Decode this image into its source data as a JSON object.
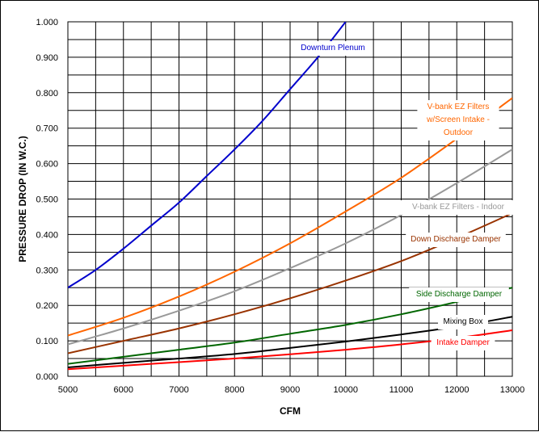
{
  "chart_data": {
    "type": "line",
    "title": "",
    "xlabel": "CFM",
    "ylabel": "PRESSURE DROP (IN W.C.)",
    "xlim": [
      5000,
      13000
    ],
    "ylim": [
      0,
      1.0
    ],
    "grid": true,
    "legend": "inline labels next to each curve",
    "x_ticks": [
      "5000",
      "6000",
      "7000",
      "8000",
      "9000",
      "10000",
      "11000",
      "12000",
      "13000"
    ],
    "y_ticks": [
      "0.000",
      "0.100",
      "0.200",
      "0.300",
      "0.400",
      "0.500",
      "0.600",
      "0.700",
      "0.800",
      "0.900",
      "1.000"
    ],
    "series": [
      {
        "name": "Downturn Plenum",
        "label_lines": [
          "Downturn Plenum"
        ],
        "color": "#0000cc",
        "x": [
          5000,
          5500,
          6000,
          6500,
          7000,
          7500,
          8000,
          8500,
          9000,
          9500,
          10000
        ],
        "values": [
          0.25,
          0.3,
          0.36,
          0.425,
          0.49,
          0.565,
          0.64,
          0.72,
          0.81,
          0.9,
          1.0
        ]
      },
      {
        "name": "V-bank EZ Filters w/Screen Intake - Outdoor",
        "label_lines": [
          "V-bank EZ Filters",
          "w/Screen Intake -",
          "Outdoor"
        ],
        "color": "#ff6600",
        "x": [
          5000,
          6000,
          7000,
          8000,
          9000,
          10000,
          11000,
          12000,
          13000
        ],
        "values": [
          0.115,
          0.165,
          0.225,
          0.295,
          0.375,
          0.465,
          0.56,
          0.67,
          0.785
        ]
      },
      {
        "name": "V-bank EZ Filters - Indoor",
        "label_lines": [
          "V-bank EZ Filters - Indoor"
        ],
        "color": "#999999",
        "x": [
          5000,
          6000,
          7000,
          8000,
          9000,
          10000,
          11000,
          12000,
          13000
        ],
        "values": [
          0.09,
          0.135,
          0.185,
          0.24,
          0.305,
          0.375,
          0.455,
          0.545,
          0.64
        ]
      },
      {
        "name": "Down Discharge Damper",
        "label_lines": [
          "Down Discharge Damper"
        ],
        "color": "#993300",
        "x": [
          5000,
          6000,
          7000,
          8000,
          9000,
          10000,
          11000,
          12000,
          13000
        ],
        "values": [
          0.065,
          0.1,
          0.135,
          0.175,
          0.22,
          0.27,
          0.325,
          0.39,
          0.46
        ]
      },
      {
        "name": "Side Discharge Damper",
        "label_lines": [
          "Side Discharge Damper"
        ],
        "color": "#006600",
        "x": [
          5000,
          6000,
          7000,
          8000,
          9000,
          10000,
          11000,
          12000,
          13000
        ],
        "values": [
          0.035,
          0.055,
          0.075,
          0.095,
          0.12,
          0.145,
          0.175,
          0.21,
          0.25
        ]
      },
      {
        "name": "Mixing Box",
        "label_lines": [
          "Mixing Box"
        ],
        "color": "#000000",
        "x": [
          5000,
          6000,
          7000,
          8000,
          9000,
          10000,
          11000,
          12000,
          13000
        ],
        "values": [
          0.025,
          0.038,
          0.05,
          0.063,
          0.08,
          0.098,
          0.118,
          0.14,
          0.168
        ]
      },
      {
        "name": "Intake Damper",
        "label_lines": [
          "Intake Damper"
        ],
        "color": "#ff0000",
        "x": [
          5000,
          6000,
          7000,
          8000,
          9000,
          10000,
          11000,
          12000,
          13000
        ],
        "values": [
          0.02,
          0.03,
          0.04,
          0.05,
          0.062,
          0.075,
          0.09,
          0.108,
          0.13
        ]
      }
    ]
  }
}
